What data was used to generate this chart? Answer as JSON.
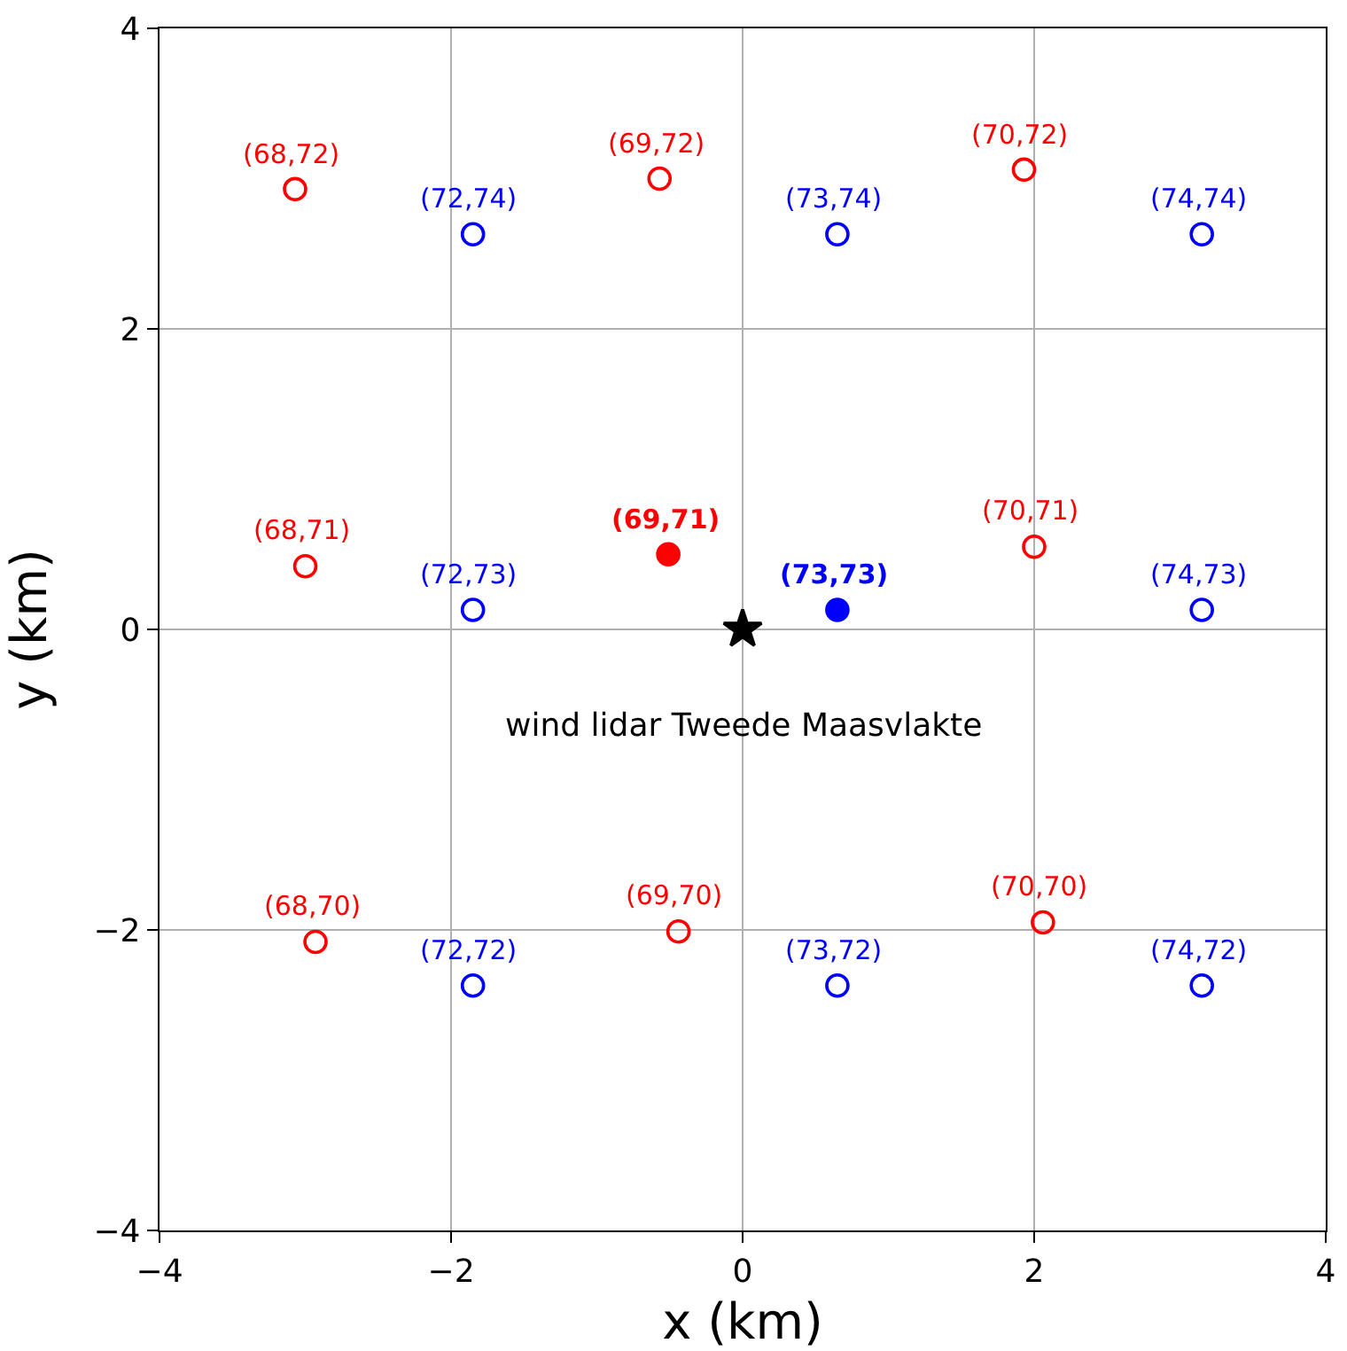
{
  "chart_data": {
    "type": "scatter",
    "xlabel": "x (km)",
    "ylabel": "y (km)",
    "xlim": [
      -4,
      4
    ],
    "ylim": [
      -4,
      4
    ],
    "xticks": [
      -4,
      -2,
      0,
      2,
      4
    ],
    "yticks": [
      -4,
      -2,
      0,
      2,
      4
    ],
    "grid": true,
    "series": [
      {
        "color": "#ff0000",
        "marker": "circle-open",
        "x": [
          -3.07,
          -0.57,
          1.93,
          -3.0,
          2.0,
          -2.93,
          -0.44,
          2.06
        ],
        "values": [
          2.93,
          3.0,
          3.06,
          0.42,
          0.55,
          -2.08,
          -2.01,
          -1.95
        ]
      },
      {
        "color": "#ff0000",
        "marker": "circle",
        "x": [
          -0.51
        ],
        "values": [
          0.5
        ]
      },
      {
        "color": "#0000ff",
        "marker": "circle-open",
        "x": [
          -1.85,
          0.65,
          3.15,
          -1.85,
          3.15,
          -1.85,
          0.65,
          3.15
        ],
        "values": [
          2.63,
          2.63,
          2.63,
          0.13,
          0.13,
          -2.37,
          -2.37,
          -2.37
        ]
      },
      {
        "color": "#0000ff",
        "marker": "circle",
        "x": [
          0.65
        ],
        "values": [
          0.13
        ]
      },
      {
        "color": "#000000",
        "marker": "star",
        "x": [
          0
        ],
        "values": [
          0
        ]
      }
    ],
    "annotations": [
      {
        "text": "(68,72)",
        "x": -3.07,
        "y": 2.93
      },
      {
        "text": "(69,72)",
        "x": -0.57,
        "y": 3.0
      },
      {
        "text": "(70,72)",
        "x": 1.93,
        "y": 3.06
      },
      {
        "text": "(68,71)",
        "x": -3.0,
        "y": 0.42
      },
      {
        "text": "(70,71)",
        "x": 2.0,
        "y": 0.55
      },
      {
        "text": "(68,70)",
        "x": -2.93,
        "y": -2.08
      },
      {
        "text": "(69,70)",
        "x": -0.44,
        "y": -2.01
      },
      {
        "text": "(70,70)",
        "x": 2.06,
        "y": -1.95
      },
      {
        "text": "(69,71)",
        "x": -0.51,
        "y": 0.5
      },
      {
        "text": "(72,74)",
        "x": -1.85,
        "y": 2.63
      },
      {
        "text": "(73,74)",
        "x": 0.65,
        "y": 2.63
      },
      {
        "text": "(74,74)",
        "x": 3.15,
        "y": 2.63
      },
      {
        "text": "(72,73)",
        "x": -1.85,
        "y": 0.13
      },
      {
        "text": "(74,73)",
        "x": 3.15,
        "y": 0.13
      },
      {
        "text": "(72,72)",
        "x": -1.85,
        "y": -2.37
      },
      {
        "text": "(73,72)",
        "x": 0.65,
        "y": -2.37
      },
      {
        "text": "(74,72)",
        "x": 3.15,
        "y": -2.37
      },
      {
        "text": "(73,73)",
        "x": 0.65,
        "y": 0.13
      },
      {
        "text": "wind lidar Tweede Maasvlakte",
        "x": 0,
        "y": 0
      }
    ]
  }
}
